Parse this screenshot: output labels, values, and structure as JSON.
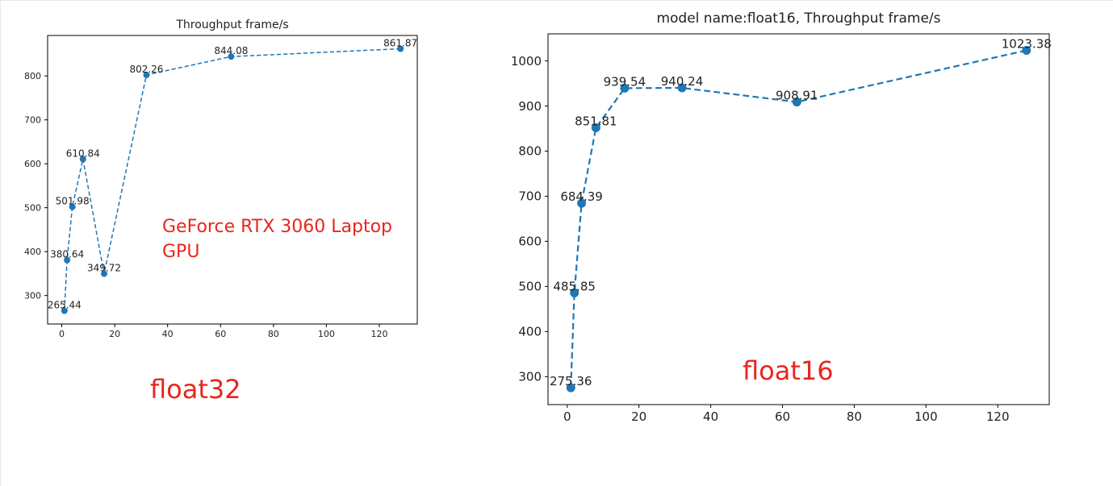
{
  "chart_data": [
    {
      "type": "line",
      "title": "Throughput frame/s",
      "xlabel": "",
      "ylabel": "",
      "x": [
        1,
        2,
        4,
        8,
        16,
        32,
        64,
        128
      ],
      "series": [
        {
          "values": [
            265.44,
            380.64,
            501.98,
            610.84,
            349.72,
            802.26,
            844.08,
            861.87
          ]
        }
      ],
      "data_labels": [
        "265.44",
        "380.64",
        "501.98",
        "610.84",
        "349.72",
        "802.26",
        "844.08",
        "861.87"
      ],
      "xlim": [
        -5.35,
        134.35
      ],
      "ylim": [
        235.18,
        892.13
      ],
      "xticks": [
        0,
        20,
        40,
        60,
        80,
        100,
        120
      ],
      "yticks": [
        300,
        400,
        500,
        600,
        700,
        800
      ],
      "line_style": "dashed",
      "marker": "circle",
      "color": "#1f77b4",
      "grid": false,
      "annotations": [
        "GeForce RTX 3060 Laptop\nGPU",
        "float32"
      ]
    },
    {
      "type": "line",
      "title": "model name:float16, Throughput frame/s",
      "xlabel": "",
      "ylabel": "",
      "x": [
        1,
        2,
        4,
        8,
        16,
        32,
        64,
        128
      ],
      "series": [
        {
          "values": [
            275.36,
            485.85,
            684.39,
            851.81,
            939.54,
            940.24,
            908.91,
            1023.38
          ]
        }
      ],
      "data_labels": [
        "275.36",
        "485.85",
        "684.39",
        "851.81",
        "939.54",
        "940.24",
        "908.91",
        "1023.38"
      ],
      "xlim": [
        -5.35,
        134.35
      ],
      "ylim": [
        238.0,
        1060.0
      ],
      "xticks": [
        0,
        20,
        40,
        60,
        80,
        100,
        120
      ],
      "yticks": [
        300,
        400,
        500,
        600,
        700,
        800,
        900,
        1000
      ],
      "line_style": "dashed",
      "marker": "circle",
      "color": "#1f77b4",
      "grid": false,
      "annotations": [
        "float16"
      ]
    }
  ]
}
